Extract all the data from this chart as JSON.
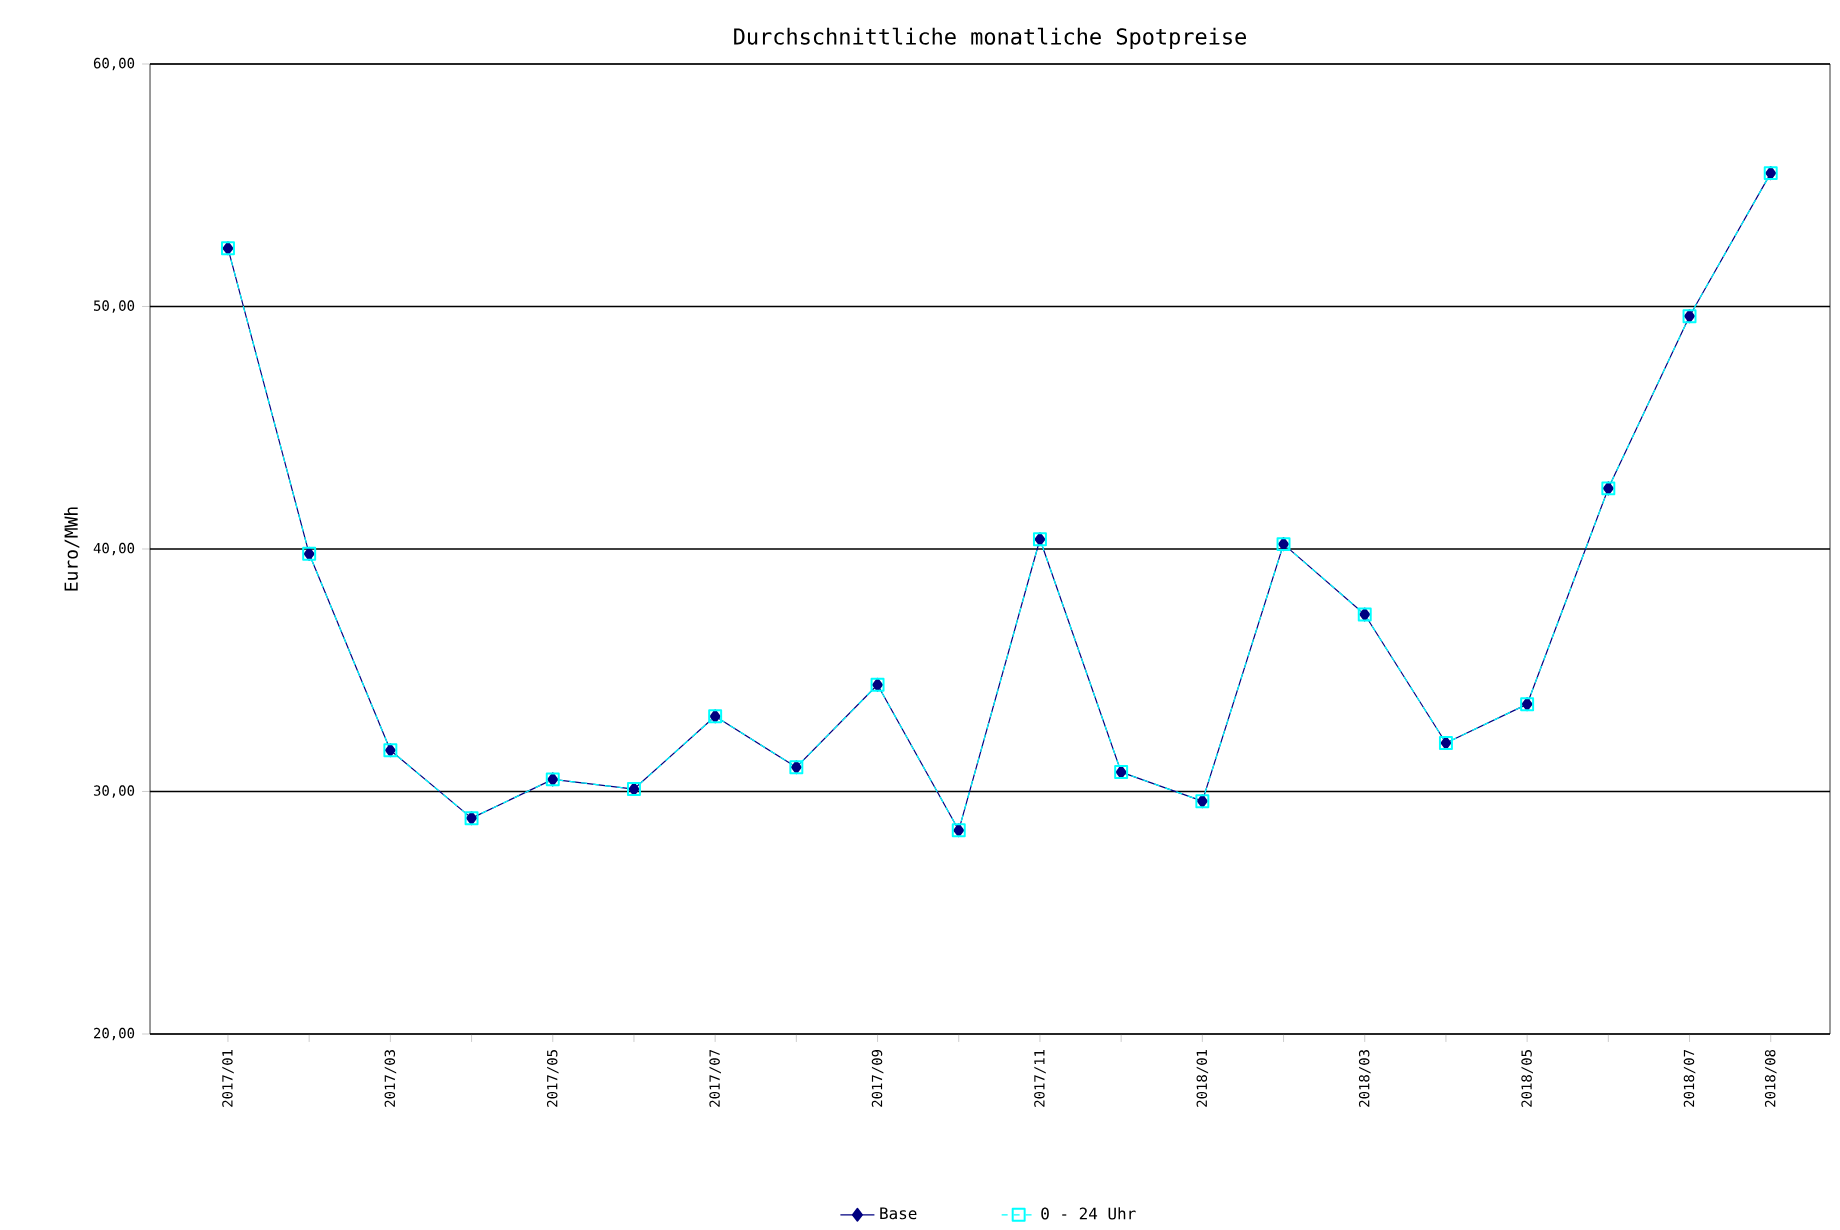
{
  "chart_data": {
    "type": "line",
    "title": "Durchschnittliche monatliche Spotpreise",
    "ylabel": "Euro/MWh",
    "categories": [
      "2017/01",
      null,
      "2017/03",
      null,
      "2017/05",
      null,
      "2017/07",
      null,
      "2017/09",
      null,
      "2017/11",
      null,
      "2018/01",
      null,
      "2018/03",
      null,
      "2018/05",
      null,
      "2018/07",
      "2018/08"
    ],
    "series": [
      {
        "name": "Base",
        "color": "#000080",
        "marker": "diamond",
        "line_style": "solid",
        "values": [
          52.4,
          39.8,
          31.7,
          28.9,
          30.5,
          30.1,
          33.1,
          31.0,
          34.4,
          28.4,
          40.4,
          30.8,
          29.6,
          40.2,
          37.3,
          32.0,
          33.6,
          42.5,
          49.6,
          55.5
        ]
      },
      {
        "name": "0 - 24 Uhr",
        "color": "#00ffff",
        "marker": "square",
        "line_style": "dashed",
        "values": [
          52.4,
          39.8,
          31.7,
          28.9,
          30.5,
          30.1,
          33.1,
          31.0,
          34.4,
          28.4,
          40.4,
          30.8,
          29.6,
          40.2,
          37.3,
          32.0,
          33.6,
          42.5,
          49.6,
          55.5
        ]
      }
    ],
    "ylim": [
      20,
      60
    ],
    "yticks": [
      {
        "value": 20,
        "label": "20,00"
      },
      {
        "value": 30,
        "label": "30,00"
      },
      {
        "value": 40,
        "label": "40,00"
      },
      {
        "value": 50,
        "label": "50,00"
      },
      {
        "value": 60,
        "label": "60,00"
      }
    ],
    "grid": "y",
    "legend": "bottom"
  }
}
